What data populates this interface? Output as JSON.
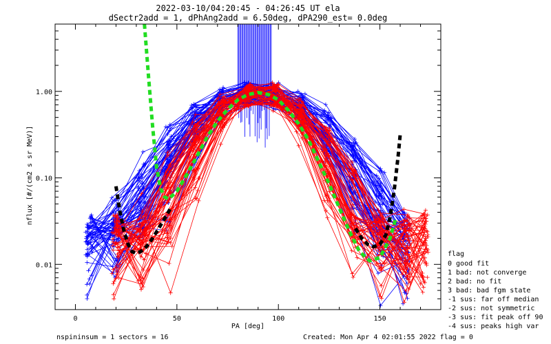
{
  "chart_data": {
    "type": "line",
    "title": "2022-03-10/04:20:45 - 04:26:45 UT ela",
    "subtitle": "dSectr2add = 1, dPhAng2add = 6.50deg, dPA290_est=   0.0deg",
    "xlabel": "PA [deg]",
    "ylabel": "nflux [#/(cm2 s sr MeV)]",
    "xlim": [
      -10,
      180
    ],
    "ylim": [
      0.003,
      6
    ],
    "yscale": "log",
    "x_ticks": [
      0,
      50,
      100,
      150
    ],
    "x_tick_labels": [
      "0",
      "50",
      "100",
      "150"
    ],
    "y_ticks": [
      0.01,
      0.1,
      1.0
    ],
    "y_tick_labels": [
      "0.01",
      "0.10",
      "1.00"
    ],
    "grid": false,
    "legend_position": "right",
    "colors": {
      "blue": "#0000ff",
      "red": "#ff0000",
      "green": "#22dd22",
      "black": "#000000"
    },
    "series": [
      {
        "color": "#22dd22",
        "style": "dashed-thick",
        "x": [
          34,
          36,
          38,
          40,
          42,
          44,
          46,
          50,
          55,
          60,
          65,
          70,
          75,
          80,
          85,
          90,
          95,
          100,
          105,
          110,
          115,
          120,
          125,
          130,
          135,
          140,
          145,
          150,
          155,
          158
        ],
        "y": [
          6.0,
          1.5,
          0.4,
          0.13,
          0.075,
          0.06,
          0.057,
          0.07,
          0.11,
          0.18,
          0.3,
          0.45,
          0.62,
          0.8,
          0.92,
          0.97,
          0.92,
          0.8,
          0.6,
          0.42,
          0.27,
          0.15,
          0.085,
          0.045,
          0.024,
          0.014,
          0.011,
          0.012,
          0.02,
          0.035
        ]
      },
      {
        "color": "#000000",
        "style": "dashed-thick",
        "x": [
          20,
          22,
          24,
          26,
          28,
          30,
          32,
          35,
          38,
          41,
          44,
          47
        ],
        "y": [
          0.08,
          0.04,
          0.024,
          0.017,
          0.014,
          0.0135,
          0.014,
          0.016,
          0.02,
          0.026,
          0.034,
          0.045
        ]
      },
      {
        "color": "#000000",
        "style": "dashed-thick",
        "x": [
          138,
          141,
          144,
          147,
          150,
          153,
          155,
          157,
          159,
          160
        ],
        "y": [
          0.026,
          0.02,
          0.017,
          0.016,
          0.017,
          0.022,
          0.035,
          0.07,
          0.18,
          0.32
        ]
      }
    ]
  },
  "legend": {
    "title": "flag",
    "entries": [
      " 0 good fit",
      " 1 bad: not converge",
      " 2 bad: no fit",
      " 3 bad: bad fgm state",
      "-1 sus: far off median",
      "-2 sus: not symmetric",
      "-3 sus: fit peak off 90",
      "-4 sus: peaks high var"
    ]
  },
  "footer": {
    "left": "nspininsum =  1  sectors = 16",
    "right": "Created: Mon Apr  4 02:01:55 2022   flag = 0"
  }
}
